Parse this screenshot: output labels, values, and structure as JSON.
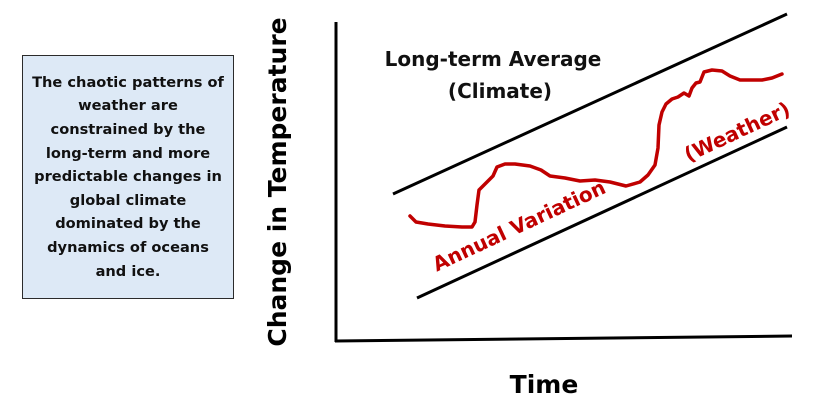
{
  "note": {
    "text": "The chaotic patterns of weather are constrained by the long-term and more predictable changes in global climate dominated by the dynamics of oceans and ice."
  },
  "diagram": {
    "x_axis_label": "Time",
    "y_axis_label": "Change in Temperature",
    "climate_label_line1": "Long-term Average",
    "climate_label_line2": "(Climate)",
    "annual_label": "Annual Variation",
    "weather_label": "(Weather)"
  },
  "colors": {
    "weather_line": "#c00000",
    "note_background": "#dde9f6",
    "axis": "#000000"
  }
}
